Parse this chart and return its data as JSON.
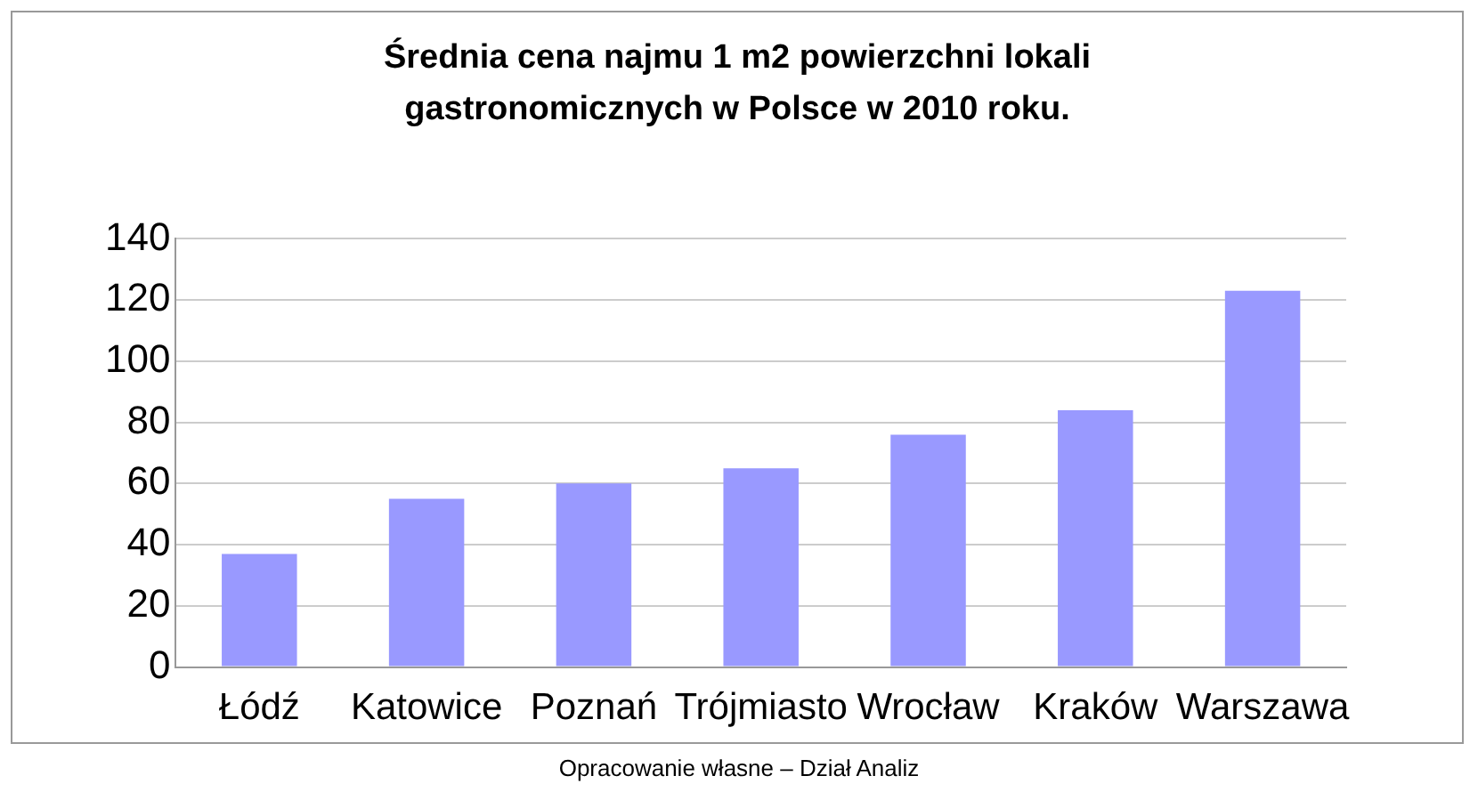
{
  "chart_data": {
    "type": "bar",
    "title": "Średnia cena najmu 1 m2 powierzchni lokali\ngastronomicznych w Polsce w 2010 roku.",
    "categories": [
      "Łódź",
      "Katowice",
      "Poznań",
      "Trójmiasto",
      "Wrocław",
      "Kraków",
      "Warszawa"
    ],
    "values": [
      37,
      55,
      60,
      65,
      76,
      84,
      123
    ],
    "color": "#9999ff",
    "ylim": [
      0,
      140
    ],
    "yticks": [
      0,
      20,
      40,
      60,
      80,
      100,
      120,
      140
    ],
    "grid": "y",
    "legend": false,
    "annotations": [
      "Opracowanie własne – Dział Analiz"
    ]
  }
}
